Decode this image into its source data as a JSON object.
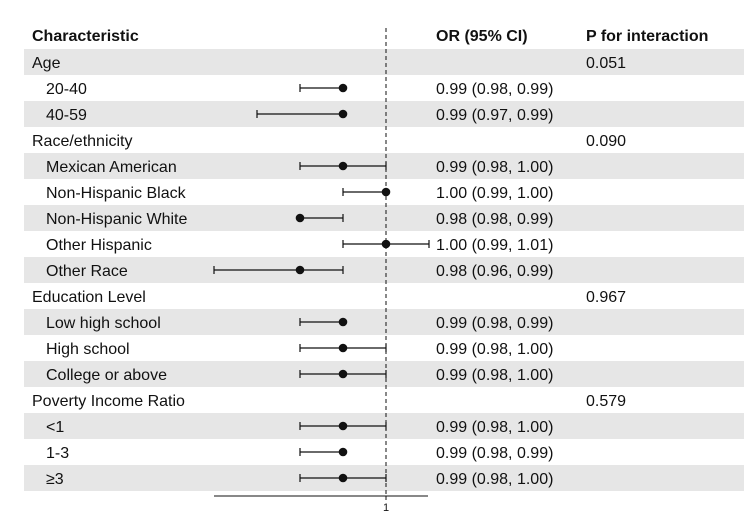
{
  "chart_data": {
    "type": "forest",
    "headers": {
      "characteristic": "Characteristic",
      "or_ci": "OR (95% CI)",
      "p_interaction": "P for interaction"
    },
    "x_axis": {
      "reference_line": 1,
      "tick_labels": [
        "1"
      ]
    },
    "rows": [
      {
        "label": "Age",
        "kind": "group",
        "p": "0.051"
      },
      {
        "label": "20-40",
        "kind": "item",
        "or": 0.99,
        "lower": 0.98,
        "upper": 0.99,
        "ci_text": "0.99 (0.98, 0.99)"
      },
      {
        "label": "40-59",
        "kind": "item",
        "or": 0.99,
        "lower": 0.97,
        "upper": 0.99,
        "ci_text": "0.99 (0.97, 0.99)"
      },
      {
        "label": "Race/ethnicity",
        "kind": "group",
        "p": "0.090"
      },
      {
        "label": "Mexican American",
        "kind": "item",
        "or": 0.99,
        "lower": 0.98,
        "upper": 1.0,
        "ci_text": "0.99 (0.98, 1.00)"
      },
      {
        "label": "Non-Hispanic Black",
        "kind": "item",
        "or": 1.0,
        "lower": 0.99,
        "upper": 1.0,
        "ci_text": "1.00 (0.99, 1.00)"
      },
      {
        "label": "Non-Hispanic White",
        "kind": "item",
        "or": 0.98,
        "lower": 0.98,
        "upper": 0.99,
        "ci_text": "0.98 (0.98, 0.99)"
      },
      {
        "label": "Other Hispanic",
        "kind": "item",
        "or": 1.0,
        "lower": 0.99,
        "upper": 1.01,
        "ci_text": "1.00 (0.99, 1.01)"
      },
      {
        "label": "Other Race",
        "kind": "item",
        "or": 0.98,
        "lower": 0.96,
        "upper": 0.99,
        "ci_text": "0.98 (0.96, 0.99)"
      },
      {
        "label": "Education Level",
        "kind": "group",
        "p": "0.967"
      },
      {
        "label": "Low high school",
        "kind": "item",
        "or": 0.99,
        "lower": 0.98,
        "upper": 0.99,
        "ci_text": "0.99 (0.98, 0.99)"
      },
      {
        "label": "High school",
        "kind": "item",
        "or": 0.99,
        "lower": 0.98,
        "upper": 1.0,
        "ci_text": "0.99 (0.98, 1.00)"
      },
      {
        "label": "College or above",
        "kind": "item",
        "or": 0.99,
        "lower": 0.98,
        "upper": 1.0,
        "ci_text": "0.99 (0.98, 1.00)"
      },
      {
        "label": "Poverty Income Ratio",
        "kind": "group",
        "p": "0.579"
      },
      {
        "label": "<1",
        "kind": "item",
        "or": 0.99,
        "lower": 0.98,
        "upper": 1.0,
        "ci_text": "0.99 (0.98, 1.00)"
      },
      {
        "label": "1-3",
        "kind": "item",
        "or": 0.99,
        "lower": 0.98,
        "upper": 0.99,
        "ci_text": "0.99 (0.98, 0.99)"
      },
      {
        "label": "≥3",
        "kind": "item",
        "or": 0.99,
        "lower": 0.98,
        "upper": 1.0,
        "ci_text": "0.99 (0.98, 1.00)"
      }
    ],
    "colors": {
      "stripe": "#e6e6e6",
      "ink": "#111111"
    }
  }
}
